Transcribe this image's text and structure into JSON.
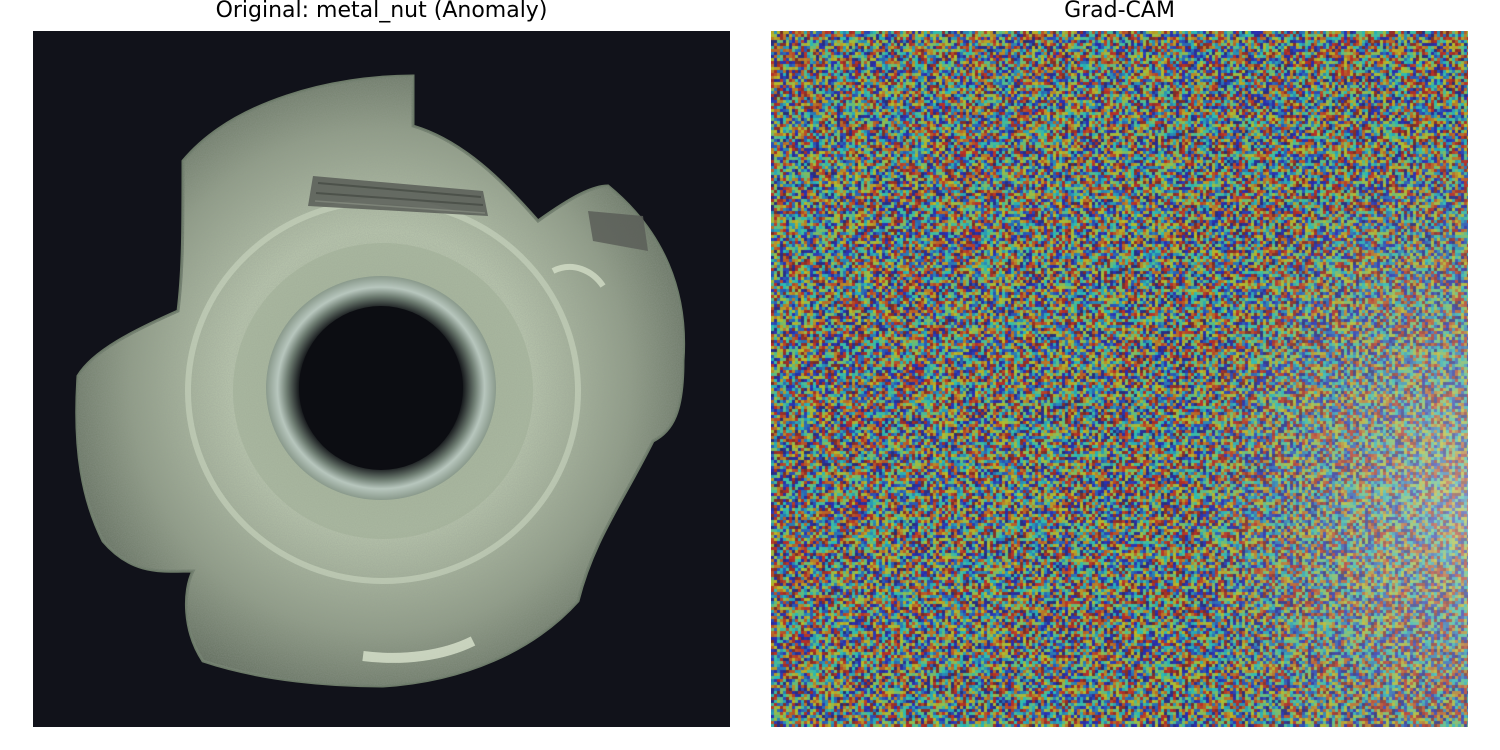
{
  "panels": {
    "left_title": "Original: metal_nut (Anomaly)",
    "right_title": "Grad-CAM"
  },
  "images": {
    "original": {
      "subject": "metal-nut",
      "description_icon": "metal-nut-photo"
    },
    "gradcam": {
      "subject": "gradcam-heatmap-overlay",
      "colormap": "jet"
    }
  },
  "colors": {
    "background": "#11121a",
    "nut_light": "#c8d4bd",
    "nut_mid": "#8f9c86",
    "nut_dark": "#4e5a4a",
    "scratch": "#5a5e58"
  }
}
